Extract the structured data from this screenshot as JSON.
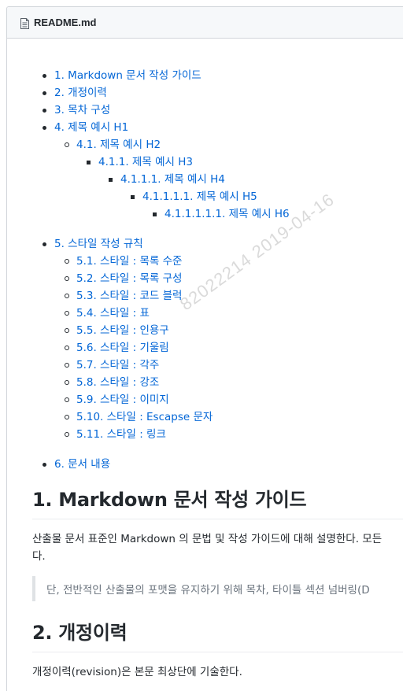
{
  "header": {
    "file_name": "README.md",
    "icon": "file-text-icon"
  },
  "toc": [
    {
      "level": 1,
      "bullet": "disc",
      "label": "1. Markdown 문서 작성 가이드"
    },
    {
      "level": 1,
      "bullet": "disc",
      "label": "2. 개정이력"
    },
    {
      "level": 1,
      "bullet": "disc",
      "label": "3. 목차 구성"
    },
    {
      "level": 1,
      "bullet": "disc",
      "label": "4. 제목 예시 H1"
    },
    {
      "level": 2,
      "bullet": "circle",
      "label": "4.1. 제목 예시 H2"
    },
    {
      "level": 3,
      "bullet": "square",
      "label": "4.1.1. 제목 예시 H3"
    },
    {
      "level": 4,
      "bullet": "square",
      "label": "4.1.1.1. 제목 예시 H4"
    },
    {
      "level": 5,
      "bullet": "square",
      "label": "4.1.1.1.1. 제목 예시 H5"
    },
    {
      "level": 6,
      "bullet": "square",
      "label": "4.1.1.1.1.1. 제목 예시 H6"
    },
    {
      "gap": true
    },
    {
      "level": 1,
      "bullet": "disc",
      "label": "5. 스타일 작성 규칙"
    },
    {
      "level": 2,
      "bullet": "circle",
      "label": "5.1. 스타일 : 목록 수준"
    },
    {
      "level": 2,
      "bullet": "circle",
      "label": "5.2. 스타일 : 목록 구성"
    },
    {
      "level": 2,
      "bullet": "circle",
      "label": "5.3. 스타일 : 코드 블럭"
    },
    {
      "level": 2,
      "bullet": "circle",
      "label": "5.4. 스타일 : 표"
    },
    {
      "level": 2,
      "bullet": "circle",
      "label": "5.5. 스타일 : 인용구"
    },
    {
      "level": 2,
      "bullet": "circle",
      "label": "5.6. 스타일 : 기울림"
    },
    {
      "level": 2,
      "bullet": "circle",
      "label": "5.7. 스타일 : 각주"
    },
    {
      "level": 2,
      "bullet": "circle",
      "label": "5.8. 스타일 : 강조"
    },
    {
      "level": 2,
      "bullet": "circle",
      "label": "5.9. 스타일 : 이미지"
    },
    {
      "level": 2,
      "bullet": "circle",
      "label": "5.10. 스타일 : Escapse 문자"
    },
    {
      "level": 2,
      "bullet": "circle",
      "label": "5.11. 스타일 : 링크"
    },
    {
      "gap": true
    },
    {
      "level": 1,
      "bullet": "disc",
      "label": "6. 문서 내용"
    }
  ],
  "sections": {
    "s1": {
      "heading": "1. Markdown 문서 작성 가이드",
      "para_line1": "산출물 문서 표준인 Markdown 의 문법 및 작성 가이드에 대해 설명한다. 모든",
      "para_line2": "다.",
      "quote": "단, 전반적인 산출물의 포맷을 유지하기 위해 목차, 타이틀 섹션 넘버링(D"
    },
    "s2": {
      "heading": "2. 개정이력",
      "para": "개정이력(revision)은 본문 최상단에 기술한다."
    }
  },
  "watermark": "82022214  2019-04-16",
  "colors": {
    "link": "#0366d6",
    "text": "#24292e",
    "muted": "#6a737d",
    "border": "#d1d5da",
    "header_bg": "#f6f8fa"
  }
}
